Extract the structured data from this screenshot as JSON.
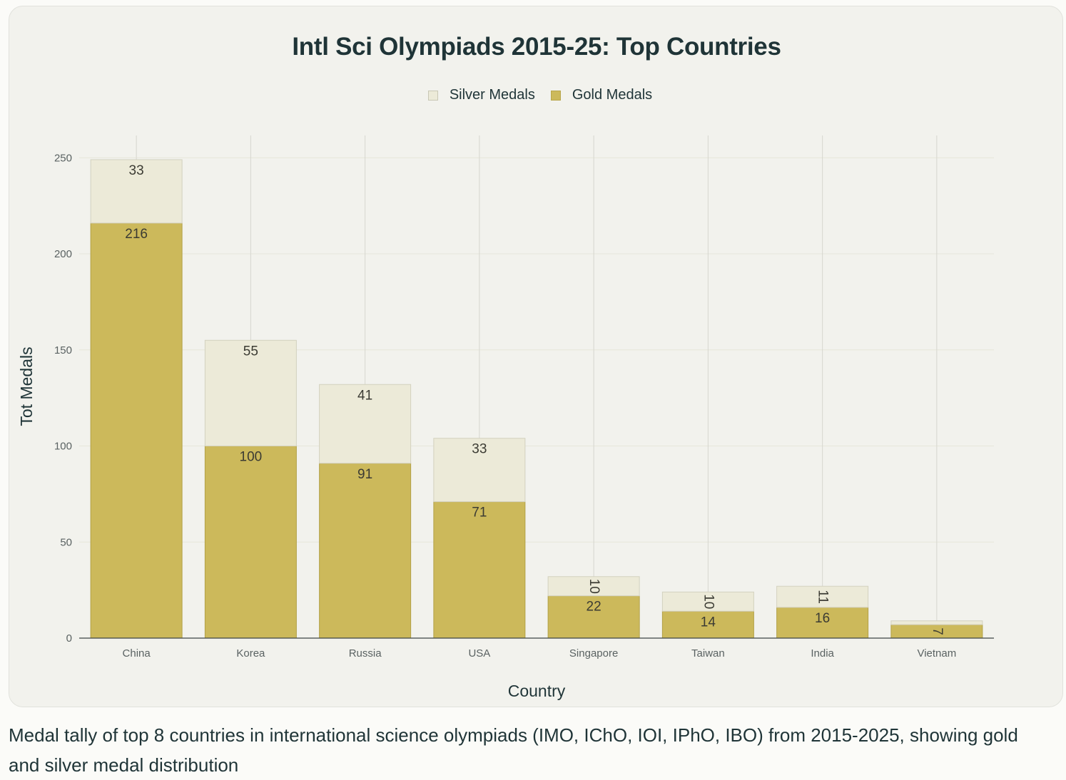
{
  "chart_data": {
    "type": "bar",
    "stacked": true,
    "title": "Intl Sci Olympiads 2015-25: Top Countries",
    "xlabel": "Country",
    "ylabel": "Tot Medals",
    "categories": [
      "China",
      "Korea",
      "Russia",
      "USA",
      "Singapore",
      "Taiwan",
      "India",
      "Vietnam"
    ],
    "series": [
      {
        "name": "Gold Medals",
        "values": [
          216,
          100,
          91,
          71,
          22,
          14,
          16,
          7
        ],
        "color": "#ccb95b"
      },
      {
        "name": "Silver Medals",
        "values": [
          33,
          55,
          41,
          33,
          10,
          10,
          11,
          2
        ],
        "color": "#ecead8"
      }
    ],
    "data_labels": {
      "Gold Medals": [
        "216",
        "100",
        "91",
        "71",
        "22",
        "14",
        "16",
        "7"
      ],
      "Silver Medals": [
        "33",
        "55",
        "41",
        "33",
        "10",
        "10",
        "11",
        ""
      ]
    },
    "yticks": [
      "0",
      "50",
      "100",
      "150",
      "200",
      "250"
    ],
    "ylim": [
      0,
      260
    ],
    "legend": {
      "placement": "top-center",
      "order": [
        "Silver Medals",
        "Gold Medals"
      ]
    },
    "grid": true
  },
  "caption": "Medal tally of top 8 countries in international science olympiads (IMO, IChO, IOI, IPhO, IBO) from 2015-2025, showing gold and silver medal distribution",
  "colors": {
    "card_background": "#f2f2ed",
    "gold": "#ccb95b",
    "silver": "#ecead8",
    "text": "#1f3437"
  }
}
